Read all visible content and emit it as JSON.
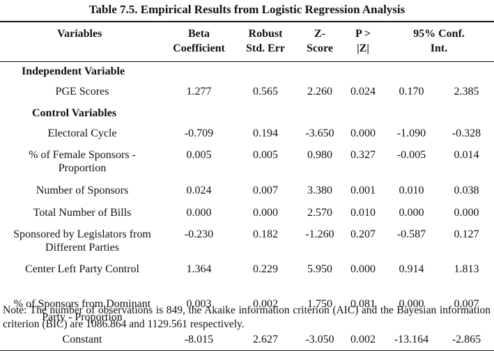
{
  "title": "Table 7.5. Empirical Results from Logistic Regression Analysis",
  "headers": [
    "Variables",
    "Beta Coefficient",
    "Robust Std. Err",
    "Z-Score",
    "P > |Z|",
    "95% Conf. Int."
  ],
  "sections": [
    {
      "name": "Independent Variable",
      "rows": [
        {
          "label": "PGE Scores",
          "values": [
            "1.277",
            "0.565",
            "2.260",
            "0.024",
            "0.170",
            "2.385"
          ]
        }
      ]
    },
    {
      "name": "Control Variables",
      "rows": [
        {
          "label": "Electoral Cycle",
          "values": [
            "-0.709",
            "0.194",
            "-3.650",
            "0.000",
            "-1.090",
            "-0.328"
          ]
        },
        {
          "label": "% of Female Sponsors - Proportion",
          "values": [
            "0.005",
            "0.005",
            "0.980",
            "0.327",
            "-0.005",
            "0.014"
          ]
        },
        {
          "label": "Number of Sponsors",
          "values": [
            "0.024",
            "0.007",
            "3.380",
            "0.001",
            "0.010",
            "0.038"
          ]
        },
        {
          "label": "Total Number of Bills",
          "values": [
            "0.000",
            "0.000",
            "2.570",
            "0.010",
            "0.000",
            "0.000"
          ]
        },
        {
          "label": "Sponsored by Legislators from Different Parties",
          "values": [
            "-0.230",
            "0.182",
            "-1.260",
            "0.207",
            "-0.587",
            "0.127"
          ]
        },
        {
          "label": "Center Left Party Control",
          "values": [
            "1.364",
            "0.229",
            "5.950",
            "0.000",
            "0.914",
            "1.813"
          ]
        },
        {
          "label": "% of Sponsors from Dominant Party - Proportion",
          "values": [
            "0.003",
            "0.002",
            "1.750",
            "0.081",
            "0.000",
            "0.007"
          ]
        },
        {
          "label": "Constant",
          "values": [
            "-8.015",
            "2.627",
            "-3.050",
            "0.002",
            "-13.164",
            "-2.865"
          ]
        }
      ]
    }
  ],
  "note": "Note: The number of observations is 849, the Akaike information criterion (AIC) and the Bayesian information criterion (BIC) are 1086.864 and 1129.561 respectively."
}
